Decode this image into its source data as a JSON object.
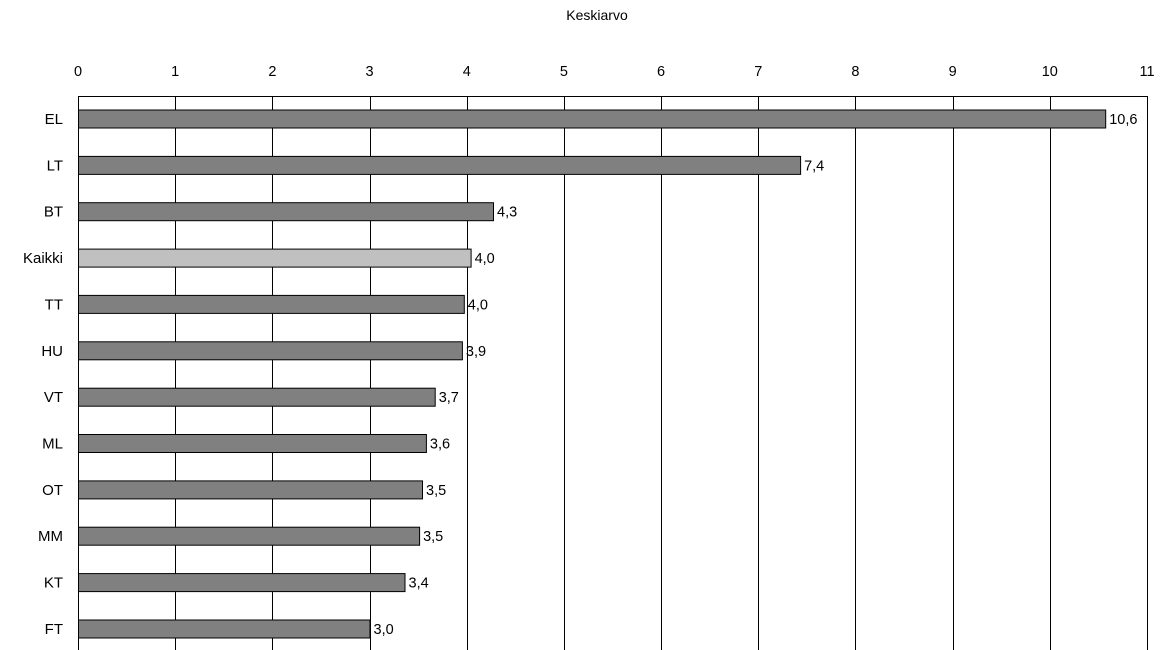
{
  "chart_data": {
    "type": "bar",
    "orientation": "horizontal",
    "title": "Keskiarvo",
    "xlim": [
      0,
      11
    ],
    "x_ticks": [
      0,
      1,
      2,
      3,
      4,
      5,
      6,
      7,
      8,
      9,
      10,
      11
    ],
    "grid": true,
    "categories": [
      "EL",
      "LT",
      "BT",
      "Kaikki",
      "TT",
      "HU",
      "VT",
      "ML",
      "OT",
      "MM",
      "KT",
      "FT"
    ],
    "values": [
      10.57,
      7.43,
      4.27,
      4.04,
      3.97,
      3.95,
      3.67,
      3.58,
      3.54,
      3.51,
      3.36,
      3.0
    ],
    "value_labels": [
      "10,6",
      "7,4",
      "4,3",
      "4,0",
      "4,0",
      "3,9",
      "3,7",
      "3,6",
      "3,5",
      "3,5",
      "3,4",
      "3,0"
    ],
    "highlight_category": "Kaikki",
    "colors": {
      "bar": "#808080",
      "highlight": "#c0c0c0",
      "stroke": "#000000",
      "grid": "#000000"
    }
  }
}
